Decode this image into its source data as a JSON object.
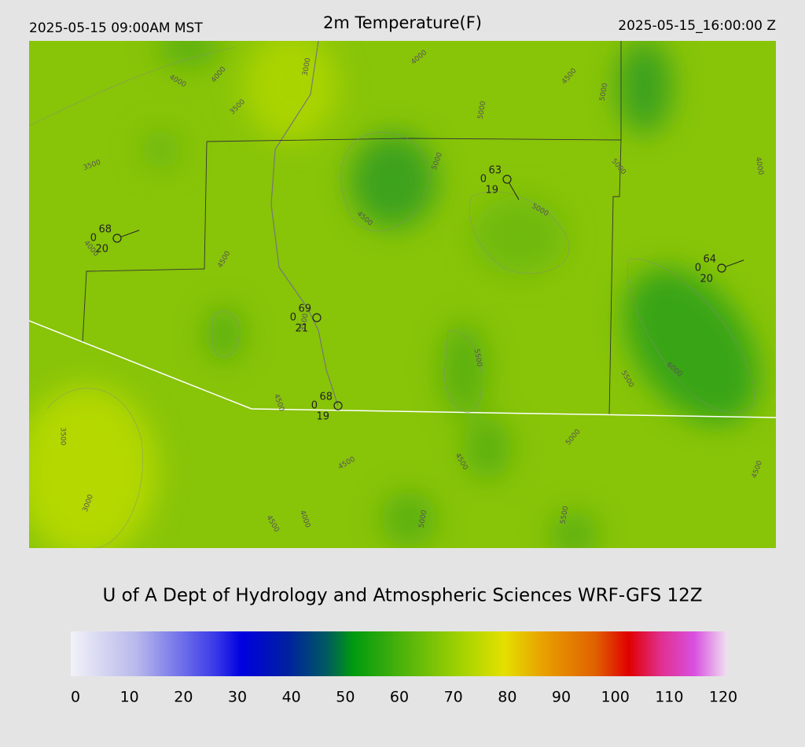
{
  "header": {
    "left": "2025-05-15 09:00AM MST",
    "title": "2m Temperature(F)",
    "right": "2025-05-15_16:00:00 Z"
  },
  "stations": [
    {
      "temperature": 68,
      "wind": 0,
      "dewpoint": 20
    },
    {
      "temperature": 63,
      "wind": 0,
      "dewpoint": 19
    },
    {
      "temperature": 64,
      "wind": 0,
      "dewpoint": 20
    },
    {
      "temperature": 69,
      "wind": 0,
      "dewpoint": 21
    },
    {
      "temperature": 68,
      "wind": 0,
      "dewpoint": 19
    }
  ],
  "contour_labels": [
    4000,
    4000,
    3500,
    3000,
    3500,
    4000,
    4500,
    5000,
    5000,
    5000,
    5000,
    4000,
    5000,
    4500,
    4500,
    4000,
    3500,
    5500,
    5500,
    6000,
    4500,
    3500,
    5000,
    4500,
    4500,
    4500,
    3000,
    4500,
    4000,
    5000,
    5500
  ],
  "footer": "U of A Dept of Hydrology and Atmospheric Sciences WRF-GFS 12Z",
  "colorbar": {
    "ticks": [
      0,
      10,
      20,
      30,
      40,
      50,
      60,
      70,
      80,
      90,
      100,
      110,
      120
    ]
  }
}
